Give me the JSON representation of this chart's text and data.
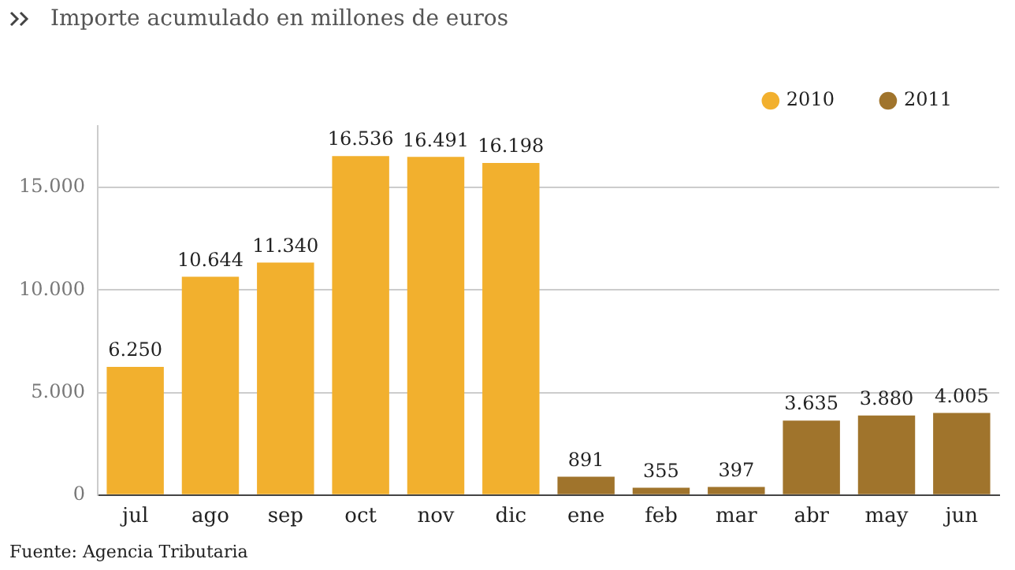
{
  "chart_data": {
    "type": "bar",
    "title": "Importe acumulado en millones de euros",
    "categories": [
      "jul",
      "ago",
      "sep",
      "oct",
      "nov",
      "dic",
      "ene",
      "feb",
      "mar",
      "abr",
      "may",
      "jun"
    ],
    "series": [
      {
        "name": "2010",
        "color": "#f2b02e",
        "values": [
          6250,
          10644,
          11340,
          16536,
          16491,
          16198,
          null,
          null,
          null,
          null,
          null,
          null
        ],
        "value_labels": [
          "6.250",
          "10.644",
          "11.340",
          "16.536",
          "16.491",
          "16.198",
          null,
          null,
          null,
          null,
          null,
          null
        ]
      },
      {
        "name": "2011",
        "color": "#a0742c",
        "values": [
          null,
          null,
          null,
          null,
          null,
          null,
          891,
          355,
          397,
          3635,
          3880,
          4005
        ],
        "value_labels": [
          null,
          null,
          null,
          null,
          null,
          null,
          "891",
          "355",
          "397",
          "3.635",
          "3.880",
          "4.005"
        ]
      }
    ],
    "yticks": [
      {
        "value": 0,
        "label": "0"
      },
      {
        "value": 5000,
        "label": "5.000"
      },
      {
        "value": 10000,
        "label": "10.000"
      },
      {
        "value": 15000,
        "label": "15.000"
      }
    ],
    "ylim": [
      0,
      18000
    ],
    "grid": "y",
    "legend": "top right",
    "annotations": [
      "Fuente: Agencia Tributaria"
    ]
  }
}
